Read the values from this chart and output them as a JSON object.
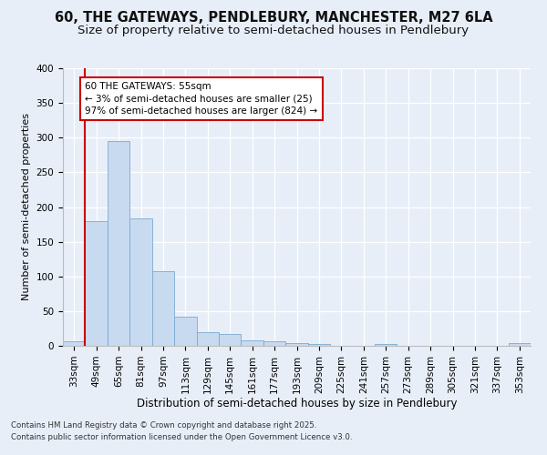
{
  "title1": "60, THE GATEWAYS, PENDLEBURY, MANCHESTER, M27 6LA",
  "title2": "Size of property relative to semi-detached houses in Pendlebury",
  "xlabel": "Distribution of semi-detached houses by size in Pendlebury",
  "ylabel": "Number of semi-detached properties",
  "categories": [
    "33sqm",
    "49sqm",
    "65sqm",
    "81sqm",
    "97sqm",
    "113sqm",
    "129sqm",
    "145sqm",
    "161sqm",
    "177sqm",
    "193sqm",
    "209sqm",
    "225sqm",
    "241sqm",
    "257sqm",
    "273sqm",
    "289sqm",
    "305sqm",
    "321sqm",
    "337sqm",
    "353sqm"
  ],
  "values": [
    7,
    180,
    295,
    183,
    108,
    42,
    20,
    17,
    8,
    6,
    4,
    2,
    0,
    0,
    3,
    0,
    0,
    0,
    0,
    0,
    4
  ],
  "bar_color": "#c8daf0",
  "bar_edge_color": "#7aaad0",
  "vline_color": "#cc0000",
  "vline_x": 0.5,
  "annotation_title": "60 THE GATEWAYS: 55sqm",
  "annotation_line1": "← 3% of semi-detached houses are smaller (25)",
  "annotation_line2": "97% of semi-detached houses are larger (824) →",
  "annotation_box_color": "#ffffff",
  "annotation_box_edge": "#cc0000",
  "ylim": [
    0,
    400
  ],
  "yticks": [
    0,
    50,
    100,
    150,
    200,
    250,
    300,
    350,
    400
  ],
  "background_color": "#e8eef8",
  "grid_color": "#ffffff",
  "footer1": "Contains HM Land Registry data © Crown copyright and database right 2025.",
  "footer2": "Contains public sector information licensed under the Open Government Licence v3.0.",
  "title1_fontsize": 10.5,
  "title2_fontsize": 9.5,
  "xlabel_fontsize": 8.5,
  "ylabel_fontsize": 8,
  "tick_fontsize": 7.5,
  "footer_fontsize": 6.2,
  "annot_fontsize": 7.5
}
